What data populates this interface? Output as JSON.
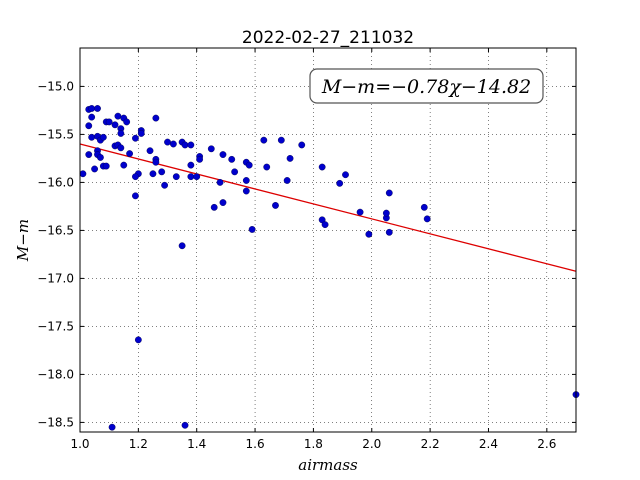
{
  "chart_data": {
    "type": "scatter",
    "title": "2022-02-27_211032",
    "xlabel": "airmass",
    "ylabel": "M−m",
    "xlim": [
      1.0,
      2.7
    ],
    "ylim": [
      -18.6,
      -14.6
    ],
    "y_inverted": true,
    "grid": true,
    "x_ticks": [
      "1.0",
      "1.2",
      "1.4",
      "1.6",
      "1.8",
      "2.0",
      "2.2",
      "2.4",
      "2.6"
    ],
    "x_tick_values": [
      1.0,
      1.2,
      1.4,
      1.6,
      1.8,
      2.0,
      2.2,
      2.4,
      2.6
    ],
    "y_ticks": [
      "−15.0",
      "−15.5",
      "−16.0",
      "−16.5",
      "−17.0",
      "−17.5",
      "−18.0",
      "−18.5"
    ],
    "y_tick_values": [
      -15.0,
      -15.5,
      -16.0,
      -16.5,
      -17.0,
      -17.5,
      -18.0,
      -18.5
    ],
    "annotation": "M−m=−0.78χ−14.82",
    "annotation_position": "top-right",
    "fit": {
      "slope": -0.78,
      "intercept": -14.82
    },
    "points": [
      [
        1.01,
        -15.91
      ],
      [
        1.03,
        -15.24
      ],
      [
        1.04,
        -15.23
      ],
      [
        1.03,
        -15.41
      ],
      [
        1.04,
        -15.32
      ],
      [
        1.04,
        -15.53
      ],
      [
        1.06,
        -15.23
      ],
      [
        1.06,
        -15.52
      ],
      [
        1.07,
        -15.56
      ],
      [
        1.03,
        -15.71
      ],
      [
        1.06,
        -15.67
      ],
      [
        1.06,
        -15.71
      ],
      [
        1.07,
        -15.74
      ],
      [
        1.05,
        -15.86
      ],
      [
        1.08,
        -15.53
      ],
      [
        1.09,
        -15.37
      ],
      [
        1.1,
        -15.37
      ],
      [
        1.08,
        -15.83
      ],
      [
        1.09,
        -15.83
      ],
      [
        1.12,
        -15.4
      ],
      [
        1.13,
        -15.31
      ],
      [
        1.14,
        -15.44
      ],
      [
        1.14,
        -15.49
      ],
      [
        1.15,
        -15.33
      ],
      [
        1.12,
        -15.62
      ],
      [
        1.13,
        -15.61
      ],
      [
        1.14,
        -15.64
      ],
      [
        1.16,
        -15.37
      ],
      [
        1.17,
        -15.7
      ],
      [
        1.15,
        -15.82
      ],
      [
        1.19,
        -15.54
      ],
      [
        1.21,
        -15.46
      ],
      [
        1.21,
        -15.49
      ],
      [
        1.2,
        -15.91
      ],
      [
        1.19,
        -15.94
      ],
      [
        1.19,
        -16.14
      ],
      [
        1.26,
        -15.33
      ],
      [
        1.24,
        -15.67
      ],
      [
        1.26,
        -15.76
      ],
      [
        1.26,
        -15.79
      ],
      [
        1.25,
        -15.91
      ],
      [
        1.28,
        -15.89
      ],
      [
        1.29,
        -16.03
      ],
      [
        1.3,
        -15.58
      ],
      [
        1.32,
        -15.6
      ],
      [
        1.33,
        -15.94
      ],
      [
        1.35,
        -15.58
      ],
      [
        1.36,
        -15.61
      ],
      [
        1.38,
        -15.61
      ],
      [
        1.38,
        -15.82
      ],
      [
        1.38,
        -15.94
      ],
      [
        1.4,
        -15.94
      ],
      [
        1.41,
        -15.73
      ],
      [
        1.41,
        -15.76
      ],
      [
        1.45,
        -15.65
      ],
      [
        1.46,
        -16.26
      ],
      [
        1.48,
        -16.0
      ],
      [
        1.49,
        -15.71
      ],
      [
        1.49,
        -16.21
      ],
      [
        1.52,
        -15.76
      ],
      [
        1.53,
        -15.89
      ],
      [
        1.57,
        -15.79
      ],
      [
        1.58,
        -15.82
      ],
      [
        1.57,
        -15.98
      ],
      [
        1.57,
        -16.09
      ],
      [
        1.59,
        -16.49
      ],
      [
        1.63,
        -15.56
      ],
      [
        1.64,
        -15.84
      ],
      [
        1.67,
        -16.24
      ],
      [
        1.69,
        -15.56
      ],
      [
        1.71,
        -15.98
      ],
      [
        1.72,
        -15.75
      ],
      [
        1.76,
        -15.61
      ],
      [
        1.83,
        -15.84
      ],
      [
        1.83,
        -16.39
      ],
      [
        1.84,
        -16.44
      ],
      [
        1.89,
        -16.01
      ],
      [
        1.91,
        -15.92
      ],
      [
        1.96,
        -16.31
      ],
      [
        1.99,
        -16.54
      ],
      [
        2.05,
        -16.37
      ],
      [
        2.05,
        -16.32
      ],
      [
        2.06,
        -16.11
      ],
      [
        2.06,
        -16.52
      ],
      [
        2.18,
        -16.26
      ],
      [
        2.19,
        -16.38
      ],
      [
        1.35,
        -16.66
      ],
      [
        1.2,
        -17.64
      ],
      [
        1.11,
        -18.55
      ],
      [
        1.36,
        -18.53
      ],
      [
        2.7,
        -18.21
      ]
    ]
  }
}
